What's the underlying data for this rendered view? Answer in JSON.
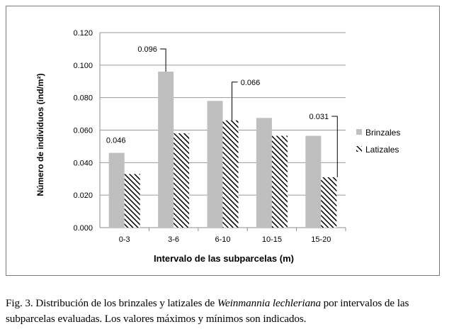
{
  "chart_data": {
    "type": "bar",
    "categories": [
      "0-3",
      "3-6",
      "6-10",
      "10-15",
      "15-20"
    ],
    "series": [
      {
        "name": "Brinzales",
        "values": [
          0.046,
          0.096,
          0.078,
          0.0675,
          0.0565
        ],
        "color": "#bfbfbf",
        "pattern": "solid"
      },
      {
        "name": "Latizales",
        "values": [
          0.033,
          0.058,
          0.066,
          0.0565,
          0.031
        ],
        "color": "#000000",
        "pattern": "diagonal-hatch"
      }
    ],
    "xlabel": "Intervalo de las subparcelas (m)",
    "ylabel": "Número de individuos (ind/m²)",
    "ylim": [
      0,
      0.12
    ],
    "yticks": [
      "0.000",
      "0.020",
      "0.040",
      "0.060",
      "0.080",
      "0.100",
      "0.120"
    ],
    "grid": true,
    "legend_position": "right",
    "annotations": [
      {
        "series": 0,
        "category": "0-3",
        "text": "0.046"
      },
      {
        "series": 0,
        "category": "3-6",
        "text": "0.096"
      },
      {
        "series": 1,
        "category": "6-10",
        "text": "0.066"
      },
      {
        "series": 1,
        "category": "15-20",
        "text": "0.031"
      }
    ]
  },
  "caption": {
    "prefix": "Fig. 3. Distribución de los brinzales y latizales de ",
    "species": "Weinmannia lechleriana",
    "suffix": " por intervalos de las subparcelas evaluadas. Los valores máximos y mínimos son indicados."
  }
}
